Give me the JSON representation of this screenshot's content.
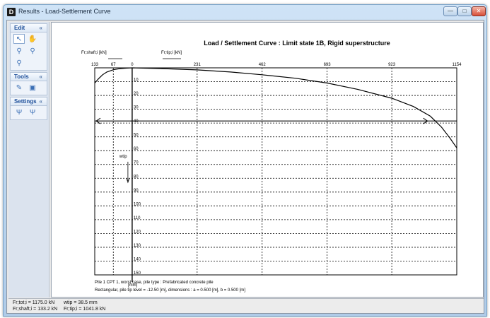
{
  "window": {
    "icon_letter": "D",
    "title": "Results - Load-Settlement Curve",
    "min_glyph": "—",
    "max_glyph": "□",
    "close_glyph": "✕"
  },
  "sidebar": {
    "sections": [
      {
        "label": "Edit",
        "chevron": "«",
        "tools": [
          {
            "name": "pointer-tool-icon",
            "glyph": "↖",
            "active": true
          },
          {
            "name": "pan-hand-icon",
            "glyph": "✋",
            "active": false
          },
          {
            "name": "zoom-in-icon",
            "glyph": "⚲",
            "active": false
          },
          {
            "name": "zoom-out-icon",
            "glyph": "⚲",
            "active": false
          },
          {
            "name": "zoom-reset-icon",
            "glyph": "⚲",
            "active": false
          }
        ]
      },
      {
        "label": "Tools",
        "chevron": "«",
        "tools": [
          {
            "name": "measure-tool-icon",
            "glyph": "✎",
            "active": false
          },
          {
            "name": "copy-chart-icon",
            "glyph": "▣",
            "active": false
          }
        ]
      },
      {
        "label": "Settings",
        "chevron": "«",
        "tools": [
          {
            "name": "chart-settings-icon",
            "glyph": "Ψ",
            "active": false
          },
          {
            "name": "curve-settings-icon",
            "glyph": "Ψ",
            "active": false
          }
        ]
      }
    ]
  },
  "chart_data": {
    "type": "line",
    "title": "Load / Settlement Curve : Limit state 1B, Rigid superstructure",
    "xlim": [
      -133,
      1154
    ],
    "ylim": [
      0,
      150
    ],
    "x_ticks": [
      -133,
      -67,
      0,
      231,
      462,
      693,
      923,
      1154
    ],
    "x_tick_labels": [
      "133",
      "67",
      "0",
      "231",
      "462",
      "693",
      "923",
      "1154"
    ],
    "y_ticks": [
      10,
      20,
      30,
      40,
      50,
      60,
      70,
      80,
      90,
      100,
      110,
      120,
      130,
      140,
      150
    ],
    "y_tick_labels": [
      "10",
      "20",
      "30",
      "40",
      "50",
      "60",
      "70",
      "80",
      "90",
      "100",
      "110",
      "120",
      "130",
      "140",
      "150"
    ],
    "y_unit": "[mm]",
    "wtip_label": "wtip",
    "shaft_label": "Fr;shaft;i [kN]",
    "tip_label": "Fr;tip;i [kN]",
    "grid": true,
    "series": [
      {
        "x": [
          -133,
          -120,
          -105,
          -90,
          -67,
          -45,
          -20,
          0,
          100,
          231,
          350,
          462,
          580,
          693,
          800,
          923,
          1000,
          1060,
          1100,
          1130,
          1154
        ],
        "y": [
          11,
          8,
          5,
          3,
          1.4,
          0.6,
          0.2,
          0,
          0.5,
          1.5,
          3,
          5,
          7.5,
          11,
          15.5,
          22,
          28,
          35,
          43,
          51,
          58
        ]
      }
    ],
    "hline_y": 38.5,
    "annotations": [
      "Pile 1 CPT 1, worst case,  pile type : Prefabricated concrete pile",
      "Rectangular, pile tip level = -12.50 [m], dimensions : a = 0.500 [m], b = 0.500 [m]"
    ]
  },
  "status": {
    "line1_a": "Fr;tot;i = 1175.0 kN",
    "line1_b": "wtip = 38.5 mm",
    "line2_a": "Fr;shaft;i = 133.2 kN",
    "line2_b": "Fr;tip;i = 1041.8 kN"
  }
}
